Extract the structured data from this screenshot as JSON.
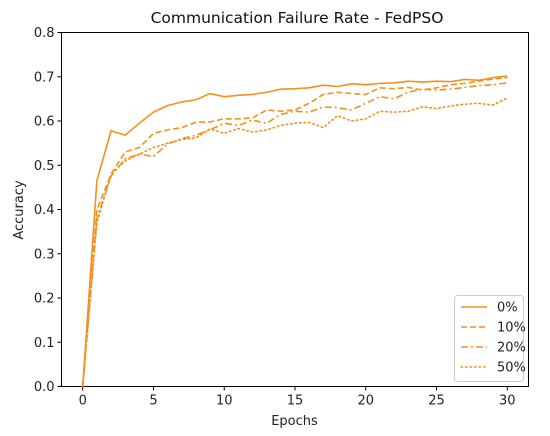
{
  "chart_data": {
    "type": "line",
    "title": "Communication Failure Rate - FedPSO",
    "xlabel": "Epochs",
    "ylabel": "Accuracy",
    "xlim": [
      -1.5,
      31.5
    ],
    "ylim": [
      0.0,
      0.8
    ],
    "x_ticks": [
      0,
      5,
      10,
      15,
      20,
      25,
      30
    ],
    "y_ticks": [
      0.0,
      0.1,
      0.2,
      0.3,
      0.4,
      0.5,
      0.6,
      0.7,
      0.8
    ],
    "grid": false,
    "legend_position": "lower-right",
    "color": "#f5901e",
    "x": [
      0,
      1,
      2,
      3,
      4,
      5,
      6,
      7,
      8,
      9,
      10,
      11,
      12,
      13,
      14,
      15,
      16,
      17,
      18,
      19,
      20,
      21,
      22,
      23,
      24,
      25,
      26,
      27,
      28,
      29,
      30
    ],
    "series": [
      {
        "name": "0%",
        "line_style": "solid",
        "values": [
          0.0,
          0.465,
          0.578,
          0.568,
          0.595,
          0.62,
          0.635,
          0.643,
          0.648,
          0.662,
          0.655,
          0.658,
          0.66,
          0.665,
          0.672,
          0.673,
          0.675,
          0.681,
          0.678,
          0.684,
          0.682,
          0.685,
          0.686,
          0.69,
          0.688,
          0.69,
          0.689,
          0.694,
          0.692,
          0.698,
          0.702
        ]
      },
      {
        "name": "10%",
        "line_style": "dashed",
        "values": [
          0.0,
          0.4,
          0.48,
          0.53,
          0.54,
          0.572,
          0.58,
          0.585,
          0.597,
          0.598,
          0.605,
          0.605,
          0.607,
          0.625,
          0.622,
          0.625,
          0.64,
          0.66,
          0.665,
          0.662,
          0.66,
          0.675,
          0.673,
          0.676,
          0.67,
          0.675,
          0.682,
          0.685,
          0.69,
          0.695,
          0.698
        ]
      },
      {
        "name": "20%",
        "line_style": "dashdot",
        "values": [
          0.0,
          0.38,
          0.475,
          0.515,
          0.525,
          0.52,
          0.548,
          0.56,
          0.568,
          0.58,
          0.595,
          0.59,
          0.602,
          0.595,
          0.615,
          0.622,
          0.62,
          0.632,
          0.63,
          0.625,
          0.64,
          0.655,
          0.65,
          0.665,
          0.672,
          0.67,
          0.672,
          0.676,
          0.68,
          0.682,
          0.686
        ]
      },
      {
        "name": "50%",
        "line_style": "dotted",
        "values": [
          0.0,
          0.37,
          0.48,
          0.51,
          0.525,
          0.54,
          0.55,
          0.558,
          0.562,
          0.582,
          0.572,
          0.583,
          0.575,
          0.58,
          0.59,
          0.595,
          0.597,
          0.585,
          0.612,
          0.6,
          0.605,
          0.622,
          0.62,
          0.622,
          0.632,
          0.628,
          0.634,
          0.638,
          0.64,
          0.636,
          0.652
        ]
      }
    ]
  }
}
